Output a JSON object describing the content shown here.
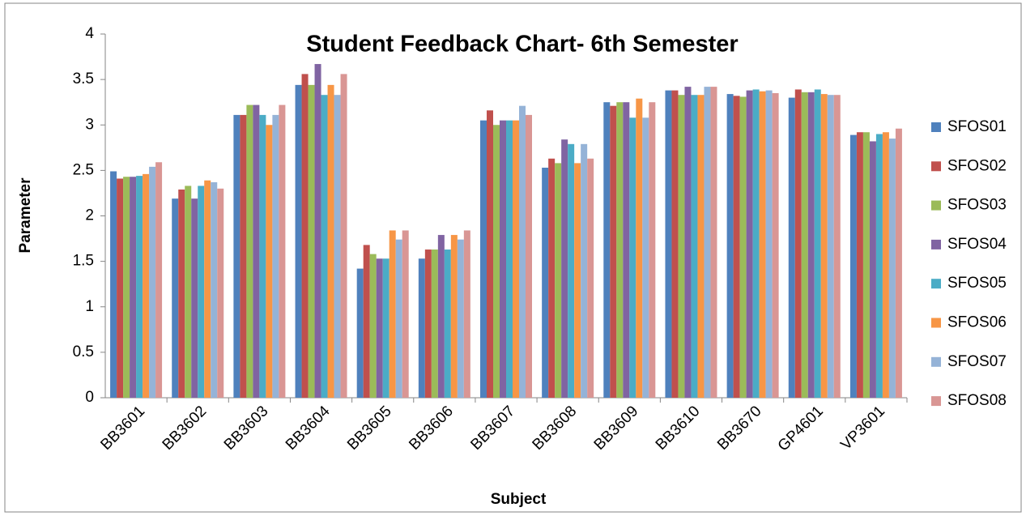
{
  "chart_data": {
    "type": "bar",
    "title": "Student Feedback Chart- 6th Semester",
    "x_label": "Subject",
    "y_label": "Parameter",
    "categories": [
      "BB3601",
      "BB3602",
      "BB3603",
      "BB3604",
      "BB3605",
      "BB3606",
      "BB3607",
      "BB3608",
      "BB3609",
      "BB3610",
      "BB3670",
      "GP4601",
      "VP3601"
    ],
    "series": [
      {
        "name": "SFOS01",
        "color": "#4f81bd",
        "values": [
          2.49,
          2.19,
          3.11,
          3.44,
          1.42,
          1.53,
          3.05,
          2.53,
          3.25,
          3.38,
          3.34,
          3.3,
          2.89
        ]
      },
      {
        "name": "SFOS02",
        "color": "#c0504d",
        "values": [
          2.41,
          2.29,
          3.11,
          3.56,
          1.68,
          1.63,
          3.16,
          2.63,
          3.21,
          3.38,
          3.32,
          3.39,
          2.92
        ]
      },
      {
        "name": "SFOS03",
        "color": "#9bbb59",
        "values": [
          2.43,
          2.33,
          3.22,
          3.44,
          1.58,
          1.63,
          3.0,
          2.58,
          3.25,
          3.33,
          3.31,
          3.36,
          2.92
        ]
      },
      {
        "name": "SFOS04",
        "color": "#8064a2",
        "values": [
          2.43,
          2.19,
          3.22,
          3.67,
          1.53,
          1.79,
          3.05,
          2.84,
          3.25,
          3.42,
          3.38,
          3.36,
          2.82
        ]
      },
      {
        "name": "SFOS05",
        "color": "#4bacc6",
        "values": [
          2.44,
          2.33,
          3.11,
          3.33,
          1.53,
          1.63,
          3.05,
          2.79,
          3.08,
          3.33,
          3.39,
          3.39,
          2.9
        ]
      },
      {
        "name": "SFOS06",
        "color": "#f79646",
        "values": [
          2.46,
          2.39,
          3.0,
          3.44,
          1.84,
          1.79,
          3.05,
          2.58,
          3.29,
          3.33,
          3.37,
          3.34,
          2.92
        ]
      },
      {
        "name": "SFOS07",
        "color": "#95b3d7",
        "values": [
          2.54,
          2.37,
          3.11,
          3.33,
          1.74,
          1.74,
          3.21,
          2.79,
          3.08,
          3.42,
          3.38,
          3.33,
          2.85
        ]
      },
      {
        "name": "SFOS08",
        "color": "#d99694",
        "values": [
          2.59,
          2.3,
          3.22,
          3.56,
          1.84,
          1.84,
          3.11,
          2.63,
          3.25,
          3.42,
          3.35,
          3.33,
          2.96
        ]
      }
    ],
    "ylim": [
      0,
      4
    ],
    "yticks": [
      0,
      {
        "value": 0.5,
        "label": "0.5"
      },
      1,
      {
        "value": 1.5,
        "label": "1.5"
      },
      2,
      {
        "value": 2.5,
        "label": "2.5"
      },
      3,
      {
        "value": 3.5,
        "label": "3.5"
      },
      4
    ],
    "grid": false,
    "legend": "right"
  }
}
